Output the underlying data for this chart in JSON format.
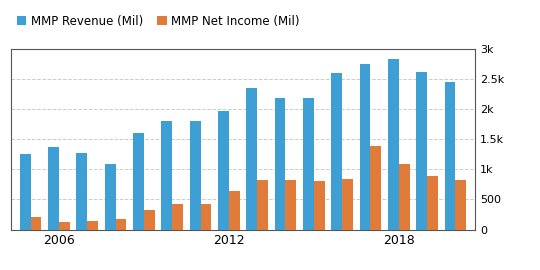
{
  "years": [
    2005,
    2006,
    2007,
    2008,
    2009,
    2010,
    2011,
    2012,
    2013,
    2014,
    2015,
    2016,
    2017,
    2018,
    2019,
    2020
  ],
  "revenue": [
    1250,
    1370,
    1270,
    1090,
    1600,
    1800,
    1800,
    1960,
    2350,
    2180,
    2180,
    2600,
    2750,
    2820,
    2620,
    2440
  ],
  "net_income": [
    200,
    130,
    145,
    175,
    330,
    430,
    430,
    640,
    820,
    820,
    800,
    840,
    1380,
    1080,
    880,
    820
  ],
  "revenue_color": "#3d9fd4",
  "net_income_color": "#e07b39",
  "legend_labels": [
    "MMP Revenue (Mil)",
    "MMP Net Income (Mil)"
  ],
  "ylim": [
    0,
    3000
  ],
  "yticks": [
    0,
    500,
    1000,
    1500,
    2000,
    2500,
    3000
  ],
  "ytick_labels": [
    "0",
    "500",
    "1k",
    "1.5k",
    "2k",
    "2.5k",
    "3k"
  ],
  "xtick_positions": [
    1,
    7,
    13
  ],
  "xtick_labels": [
    "2006",
    "2012",
    "2018"
  ],
  "background_color": "#ffffff",
  "grid_color": "#cccccc",
  "bar_width": 0.38
}
